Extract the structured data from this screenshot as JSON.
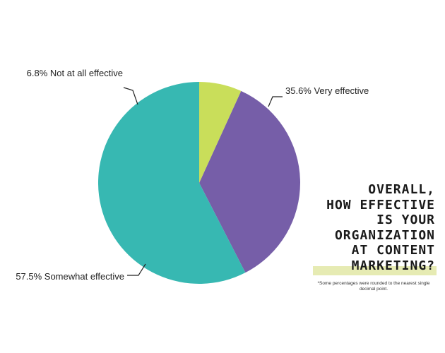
{
  "chart_data": {
    "type": "pie",
    "title": "OVERALL, HOW EFFECTIVE IS YOUR ORGANIZATION AT CONTENT MARKETING?",
    "title_lines": [
      "OVERALL,",
      "HOW EFFECTIVE",
      "IS YOUR",
      "ORGANIZATION",
      "AT CONTENT",
      "MARKETING?"
    ],
    "footnote": "*Some percentages were rounded to the nearest single decimal point.",
    "slices": [
      {
        "label": "Very effective",
        "value": 35.6,
        "display": "35.6% Very effective",
        "color": "#765ea8"
      },
      {
        "label": "Somewhat effective",
        "value": 57.5,
        "display": "57.5% Somewhat effective",
        "color": "#37b8b2"
      },
      {
        "label": "Not at all effective",
        "value": 6.8,
        "display": "6.8% Not at all effective",
        "color": "#c9de5a"
      }
    ],
    "start_angle_deg": 24.5,
    "direction": "clockwise"
  },
  "colors": {
    "title_highlight": "#e6ebb3",
    "text": "#1a1a1a"
  }
}
